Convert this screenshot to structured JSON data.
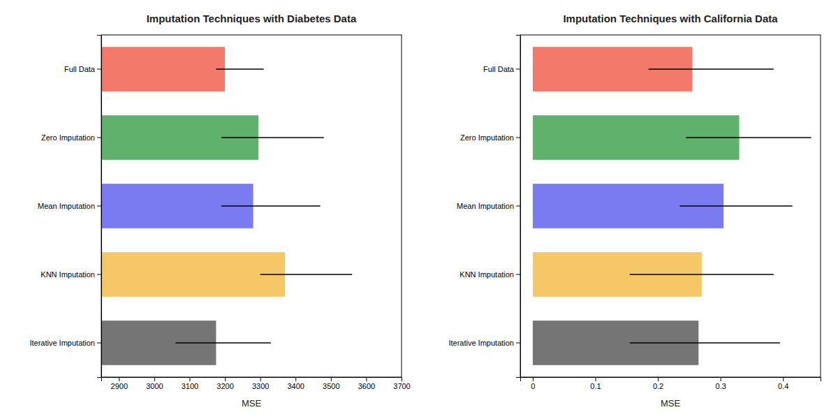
{
  "chart_data": [
    {
      "type": "bar",
      "orientation": "horizontal",
      "title": "Imputation Techniques with Diabetes Data",
      "xlabel": "MSE",
      "categories": [
        "Full Data",
        "Zero Imputation",
        "Mean Imputation",
        "KNN Imputation",
        "Iterative Imputation"
      ],
      "values": [
        3200,
        3295,
        3280,
        3370,
        3175
      ],
      "error_low": [
        3175,
        3190,
        3190,
        3300,
        3060
      ],
      "error_high": [
        3310,
        3480,
        3470,
        3560,
        3330
      ],
      "colors": [
        "#f26b5b",
        "#4ea85c",
        "#6b6bef",
        "#f5c155",
        "#666666"
      ],
      "xlim": [
        2850,
        3700
      ],
      "xticks": [
        2900,
        3000,
        3100,
        3200,
        3300,
        3400,
        3500,
        3600,
        3700
      ],
      "grid": false
    },
    {
      "type": "bar",
      "orientation": "horizontal",
      "title": "Imputation Techniques with California Data",
      "xlabel": "MSE",
      "categories": [
        "Full Data",
        "Zero Imputation",
        "Mean Imputation",
        "KNN Imputation",
        "Iterative Imputation"
      ],
      "values": [
        0.255,
        0.33,
        0.305,
        0.27,
        0.265
      ],
      "error_low": [
        0.185,
        0.245,
        0.235,
        0.155,
        0.155
      ],
      "error_high": [
        0.385,
        0.445,
        0.415,
        0.385,
        0.395
      ],
      "colors": [
        "#f26b5b",
        "#4ea85c",
        "#6b6bef",
        "#f5c155",
        "#666666"
      ],
      "xlim": [
        -0.02,
        0.46
      ],
      "xticks": [
        0,
        0.1,
        0.2,
        0.3,
        0.4
      ],
      "grid": false
    }
  ]
}
